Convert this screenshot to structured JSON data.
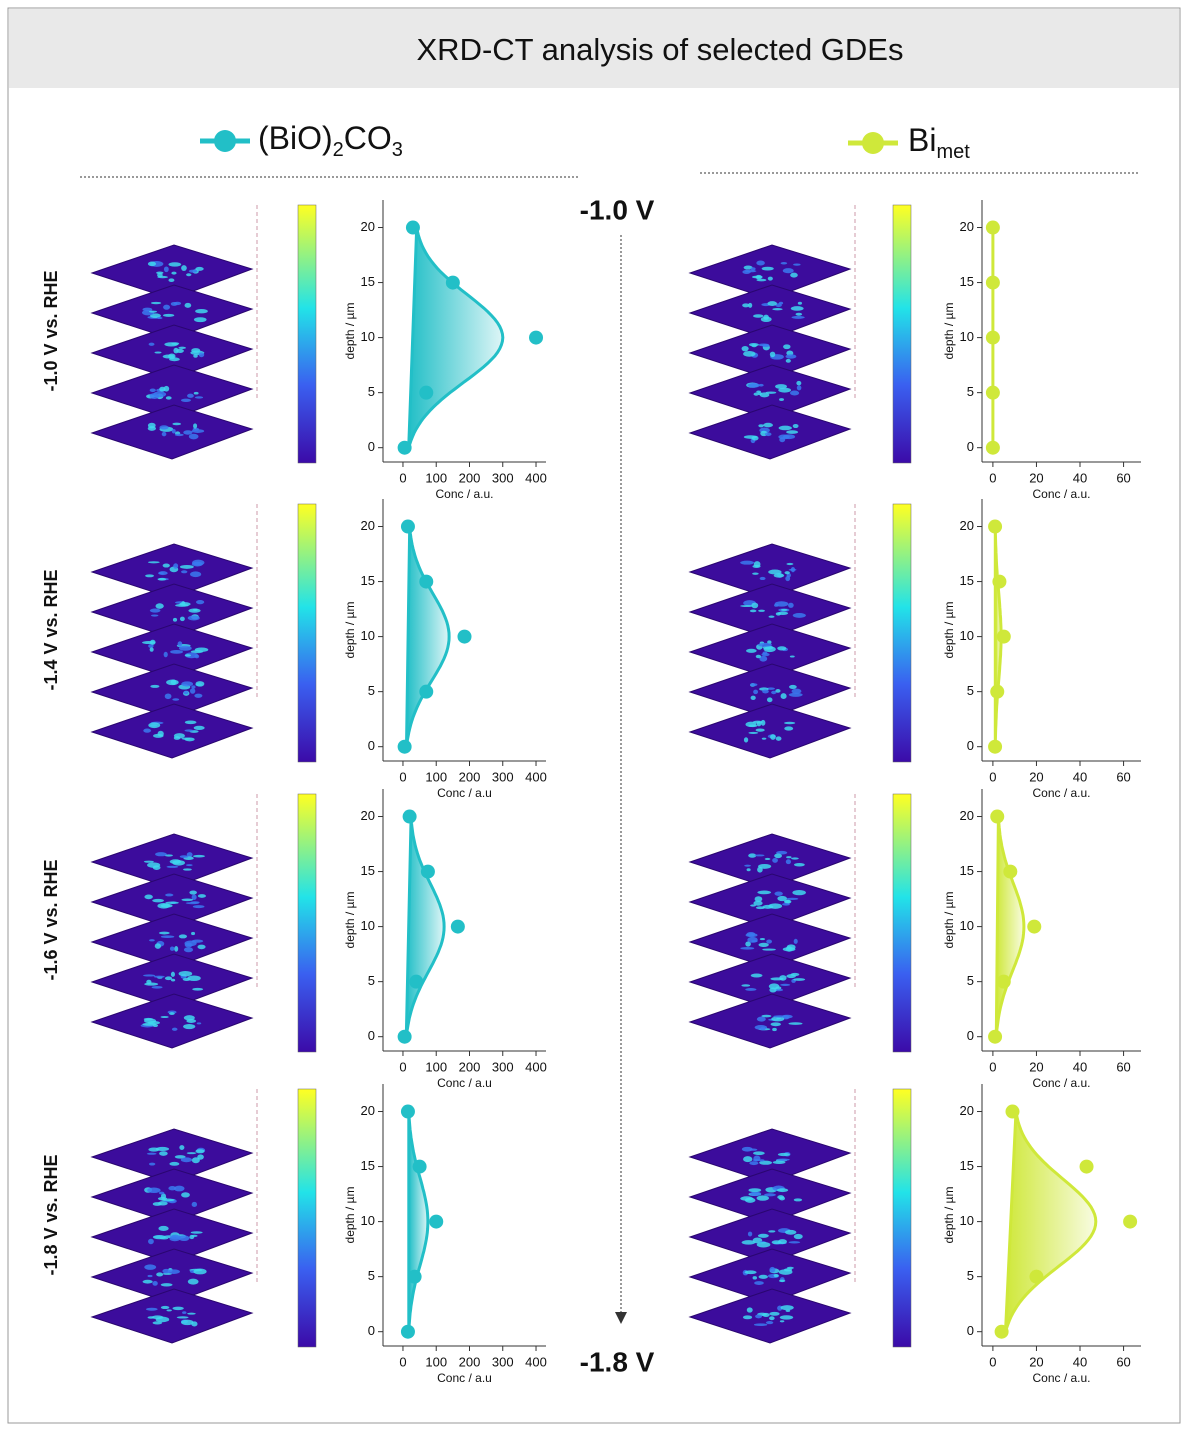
{
  "header": {
    "title": "XRD-CT analysis of selected  GDEs"
  },
  "legend": {
    "left": [
      "(BiO)",
      "2",
      "CO",
      "3"
    ],
    "right": [
      "Bi",
      "met"
    ]
  },
  "potential_axis": {
    "start": "-1.0 V",
    "end": "-1.8 V"
  },
  "row_labels": [
    "-1.0 V vs. RHE",
    "-1.4 V vs. RHE",
    "-1.6 V vs. RHE",
    "-1.8 V vs. RHE"
  ],
  "chart_data": [
    {
      "type": "scatter",
      "x": [
        5,
        70,
        400,
        150,
        30
      ],
      "y": [
        0,
        5,
        10,
        15,
        20
      ],
      "color": "#22bfc7",
      "xlim": [
        -60,
        430
      ],
      "ylim": [
        -1.3,
        22.5
      ],
      "xticks": [
        0,
        100,
        200,
        300,
        400
      ],
      "yticks": [
        0,
        5,
        10,
        15,
        20
      ],
      "xlabel": "Conc / a.u.",
      "ylabel": "depth / µm"
    },
    {
      "type": "scatter",
      "x": [
        5,
        70,
        185,
        70,
        15
      ],
      "y": [
        0,
        5,
        10,
        15,
        20
      ],
      "color": "#22bfc7",
      "xlim": [
        -60,
        430
      ],
      "ylim": [
        -1.3,
        22.5
      ],
      "xticks": [
        0,
        100,
        200,
        300,
        400
      ],
      "yticks": [
        0,
        5,
        10,
        15,
        20
      ],
      "xlabel": "Conc / a.u",
      "ylabel": "depth / µm"
    },
    {
      "type": "scatter",
      "x": [
        5,
        40,
        165,
        75,
        20
      ],
      "y": [
        0,
        5,
        10,
        15,
        20
      ],
      "color": "#22bfc7",
      "xlim": [
        -60,
        430
      ],
      "ylim": [
        -1.3,
        22.5
      ],
      "xticks": [
        0,
        100,
        200,
        300,
        400
      ],
      "yticks": [
        0,
        5,
        10,
        15,
        20
      ],
      "xlabel": "Conc / a.u",
      "ylabel": "depth / µm"
    },
    {
      "type": "scatter",
      "x": [
        15,
        35,
        100,
        50,
        15
      ],
      "y": [
        0,
        5,
        10,
        15,
        20
      ],
      "color": "#22bfc7",
      "xlim": [
        -60,
        430
      ],
      "ylim": [
        -1.3,
        22.5
      ],
      "xticks": [
        0,
        100,
        200,
        300,
        400
      ],
      "yticks": [
        0,
        5,
        10,
        15,
        20
      ],
      "xlabel": "Conc / a.u",
      "ylabel": "depth / µm"
    },
    {
      "type": "scatter",
      "x": [
        0,
        0,
        0,
        0,
        0
      ],
      "y": [
        0,
        5,
        10,
        15,
        20
      ],
      "color": "#cfe83a",
      "xlim": [
        -5,
        68
      ],
      "ylim": [
        -1.3,
        22.5
      ],
      "xticks": [
        0,
        20,
        40,
        60
      ],
      "yticks": [
        0,
        5,
        10,
        15,
        20
      ],
      "xlabel": "Conc / a.u.",
      "ylabel": "depth / µm"
    },
    {
      "type": "scatter",
      "x": [
        1,
        2,
        5,
        3,
        1
      ],
      "y": [
        0,
        5,
        10,
        15,
        20
      ],
      "color": "#cfe83a",
      "xlim": [
        -5,
        68
      ],
      "ylim": [
        -1.3,
        22.5
      ],
      "xticks": [
        0,
        20,
        40,
        60
      ],
      "yticks": [
        0,
        5,
        10,
        15,
        20
      ],
      "xlabel": "Conc / a.u.",
      "ylabel": "depth / µm"
    },
    {
      "type": "scatter",
      "x": [
        1,
        5,
        19,
        8,
        2
      ],
      "y": [
        0,
        5,
        10,
        15,
        20
      ],
      "color": "#cfe83a",
      "xlim": [
        -5,
        68
      ],
      "ylim": [
        -1.3,
        22.5
      ],
      "xticks": [
        0,
        20,
        40,
        60
      ],
      "yticks": [
        0,
        5,
        10,
        15,
        20
      ],
      "xlabel": "Conc / a.u.",
      "ylabel": "depth / µm"
    },
    {
      "type": "scatter",
      "x": [
        4,
        20,
        63,
        43,
        9
      ],
      "y": [
        0,
        5,
        10,
        15,
        20
      ],
      "color": "#cfe83a",
      "xlim": [
        -5,
        68
      ],
      "ylim": [
        -1.3,
        22.5
      ],
      "xticks": [
        0,
        20,
        40,
        60
      ],
      "yticks": [
        0,
        5,
        10,
        15,
        20
      ],
      "xlabel": "Conc / a.u.",
      "ylabel": "depth / µm"
    }
  ]
}
